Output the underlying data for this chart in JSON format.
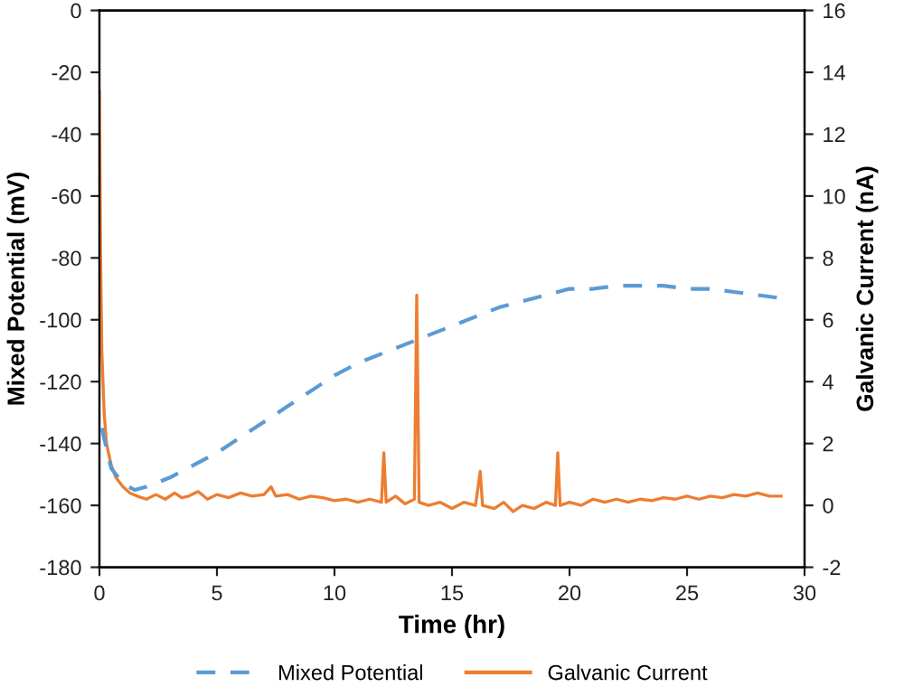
{
  "chart_data": {
    "type": "line",
    "xlabel": "Time (hr)",
    "ylabel": "Mixed Potential (mV)",
    "y2label": "Galvanic Current (nA)",
    "xlim": [
      0,
      30
    ],
    "xticks": [
      0,
      5,
      10,
      15,
      20,
      25,
      30
    ],
    "ylim": [
      -180,
      0
    ],
    "yticks": [
      -180,
      -160,
      -140,
      -120,
      -100,
      -80,
      -60,
      -40,
      -20,
      0
    ],
    "y2lim": [
      -2,
      16
    ],
    "y2ticks": [
      -2,
      0,
      2,
      4,
      6,
      8,
      10,
      12,
      14,
      16
    ],
    "grid": false,
    "legend": "bottom",
    "marker": "none",
    "series": [
      {
        "name": "Mixed Potential",
        "color": "#5b9bd5",
        "line_style": "dashed",
        "x": [
          0.1,
          0.5,
          1,
          1.5,
          2,
          3,
          4,
          5,
          6,
          7,
          8,
          9,
          10,
          11,
          12,
          13,
          14,
          15,
          16,
          17,
          18,
          19,
          20,
          21,
          22,
          23,
          24,
          25,
          26,
          27,
          28,
          29
        ],
        "values": [
          -135,
          -148,
          -153,
          -155,
          -154,
          -151,
          -147,
          -143,
          -138,
          -133,
          -128,
          -123,
          -118,
          -114,
          -111,
          -108,
          -105,
          -102,
          -99,
          -96,
          -94,
          -92,
          -90,
          -90,
          -89,
          -89,
          -89,
          -90,
          -90,
          -91,
          -92,
          -93
        ]
      },
      {
        "name": "Galvanic Current",
        "color": "#ed7d31",
        "line_style": "solid",
        "axis": "y2",
        "x": [
          0,
          0.05,
          0.1,
          0.2,
          0.3,
          0.5,
          0.7,
          1,
          1.3,
          1.6,
          2,
          2.4,
          2.8,
          3.2,
          3.5,
          3.8,
          4.2,
          4.6,
          5,
          5.5,
          6,
          6.5,
          7,
          7.3,
          7.5,
          8,
          8.5,
          9,
          9.5,
          10,
          10.5,
          11,
          11.5,
          12,
          12.1,
          12.2,
          12.6,
          13,
          13.4,
          13.5,
          13.6,
          14,
          14.5,
          15,
          15.5,
          16,
          16.2,
          16.3,
          16.8,
          17.2,
          17.6,
          18,
          18.5,
          19,
          19.4,
          19.5,
          19.6,
          20,
          20.5,
          21,
          21.5,
          22,
          22.5,
          23,
          23.5,
          24,
          24.5,
          25,
          25.5,
          26,
          26.5,
          27,
          27.5,
          28,
          28.5,
          29
        ],
        "values": [
          13.4,
          8,
          5,
          3,
          2,
          1.3,
          0.9,
          0.6,
          0.4,
          0.3,
          0.2,
          0.35,
          0.2,
          0.4,
          0.25,
          0.3,
          0.45,
          0.2,
          0.35,
          0.25,
          0.4,
          0.3,
          0.35,
          0.6,
          0.3,
          0.35,
          0.2,
          0.3,
          0.25,
          0.15,
          0.2,
          0.1,
          0.2,
          0.1,
          1.7,
          0.1,
          0.3,
          0.05,
          0.2,
          6.8,
          0.1,
          0.0,
          0.1,
          -0.1,
          0.1,
          0.0,
          1.1,
          0.0,
          -0.1,
          0.1,
          -0.2,
          0.0,
          -0.1,
          0.1,
          0.0,
          1.7,
          0.0,
          0.1,
          0.0,
          0.2,
          0.1,
          0.2,
          0.1,
          0.2,
          0.15,
          0.25,
          0.2,
          0.3,
          0.2,
          0.3,
          0.25,
          0.35,
          0.3,
          0.4,
          0.3,
          0.3
        ]
      }
    ]
  }
}
